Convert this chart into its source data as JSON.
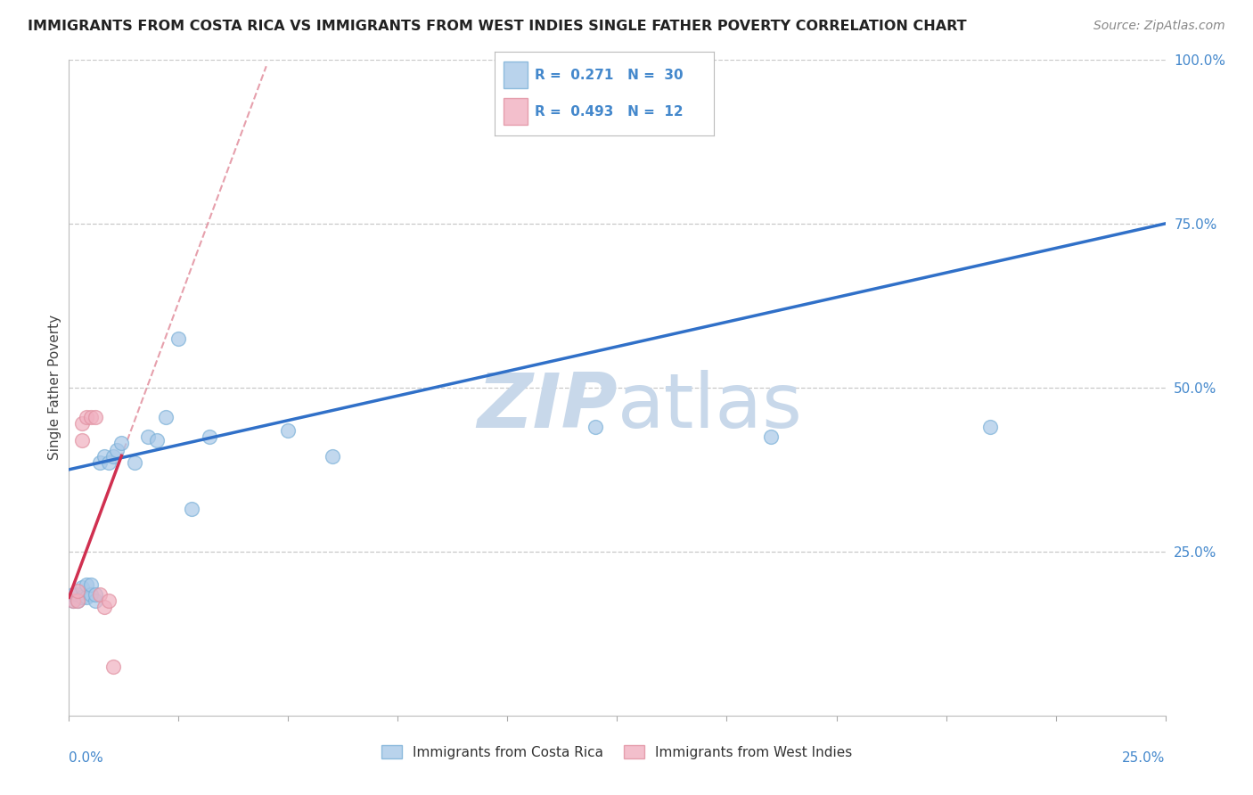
{
  "title": "IMMIGRANTS FROM COSTA RICA VS IMMIGRANTS FROM WEST INDIES SINGLE FATHER POVERTY CORRELATION CHART",
  "source": "Source: ZipAtlas.com",
  "ylabel": "Single Father Poverty",
  "legend_cr": {
    "R": 0.271,
    "N": 30,
    "label": "Immigrants from Costa Rica"
  },
  "legend_wi": {
    "R": 0.493,
    "N": 12,
    "label": "Immigrants from West Indies"
  },
  "blue_color": "#a8c8e8",
  "blue_edge_color": "#7ab0d8",
  "pink_color": "#f0b0c0",
  "pink_edge_color": "#e090a0",
  "trendline_blue_color": "#3070c8",
  "trendline_pink_solid_color": "#d03050",
  "trendline_pink_dashed_color": "#e08898",
  "watermark_color": "#c8d8ea",
  "background_color": "#ffffff",
  "grid_color": "#c8c8c8",
  "axis_label_color": "#4488cc",
  "title_color": "#222222",
  "source_color": "#888888",
  "blue_intercept": 0.375,
  "blue_slope": 1.5,
  "pink_intercept": 0.18,
  "pink_slope": 18.0,
  "cr_x": [
    0.001,
    0.001,
    0.002,
    0.002,
    0.003,
    0.003,
    0.004,
    0.004,
    0.005,
    0.005,
    0.006,
    0.006,
    0.007,
    0.008,
    0.009,
    0.01,
    0.011,
    0.012,
    0.015,
    0.018,
    0.02,
    0.022,
    0.025,
    0.028,
    0.032,
    0.05,
    0.06,
    0.12,
    0.16,
    0.21
  ],
  "cr_y": [
    0.175,
    0.185,
    0.175,
    0.185,
    0.18,
    0.195,
    0.18,
    0.2,
    0.185,
    0.2,
    0.175,
    0.185,
    0.385,
    0.395,
    0.385,
    0.395,
    0.405,
    0.415,
    0.385,
    0.425,
    0.42,
    0.455,
    0.575,
    0.315,
    0.425,
    0.435,
    0.395,
    0.44,
    0.425,
    0.44
  ],
  "wi_x": [
    0.001,
    0.002,
    0.002,
    0.003,
    0.003,
    0.004,
    0.005,
    0.006,
    0.007,
    0.008,
    0.009,
    0.01
  ],
  "wi_y": [
    0.175,
    0.175,
    0.19,
    0.42,
    0.445,
    0.455,
    0.455,
    0.455,
    0.185,
    0.165,
    0.175,
    0.075
  ],
  "xlim": [
    0.0,
    0.25
  ],
  "ylim": [
    0.0,
    1.0
  ],
  "xticks": [
    0.0,
    0.025,
    0.05,
    0.075,
    0.1,
    0.125,
    0.15,
    0.175,
    0.2,
    0.225,
    0.25
  ],
  "ytick_vals": [
    0.25,
    0.5,
    0.75,
    1.0
  ],
  "ytick_labels": [
    "25.0%",
    "50.0%",
    "75.0%",
    "100.0%"
  ]
}
